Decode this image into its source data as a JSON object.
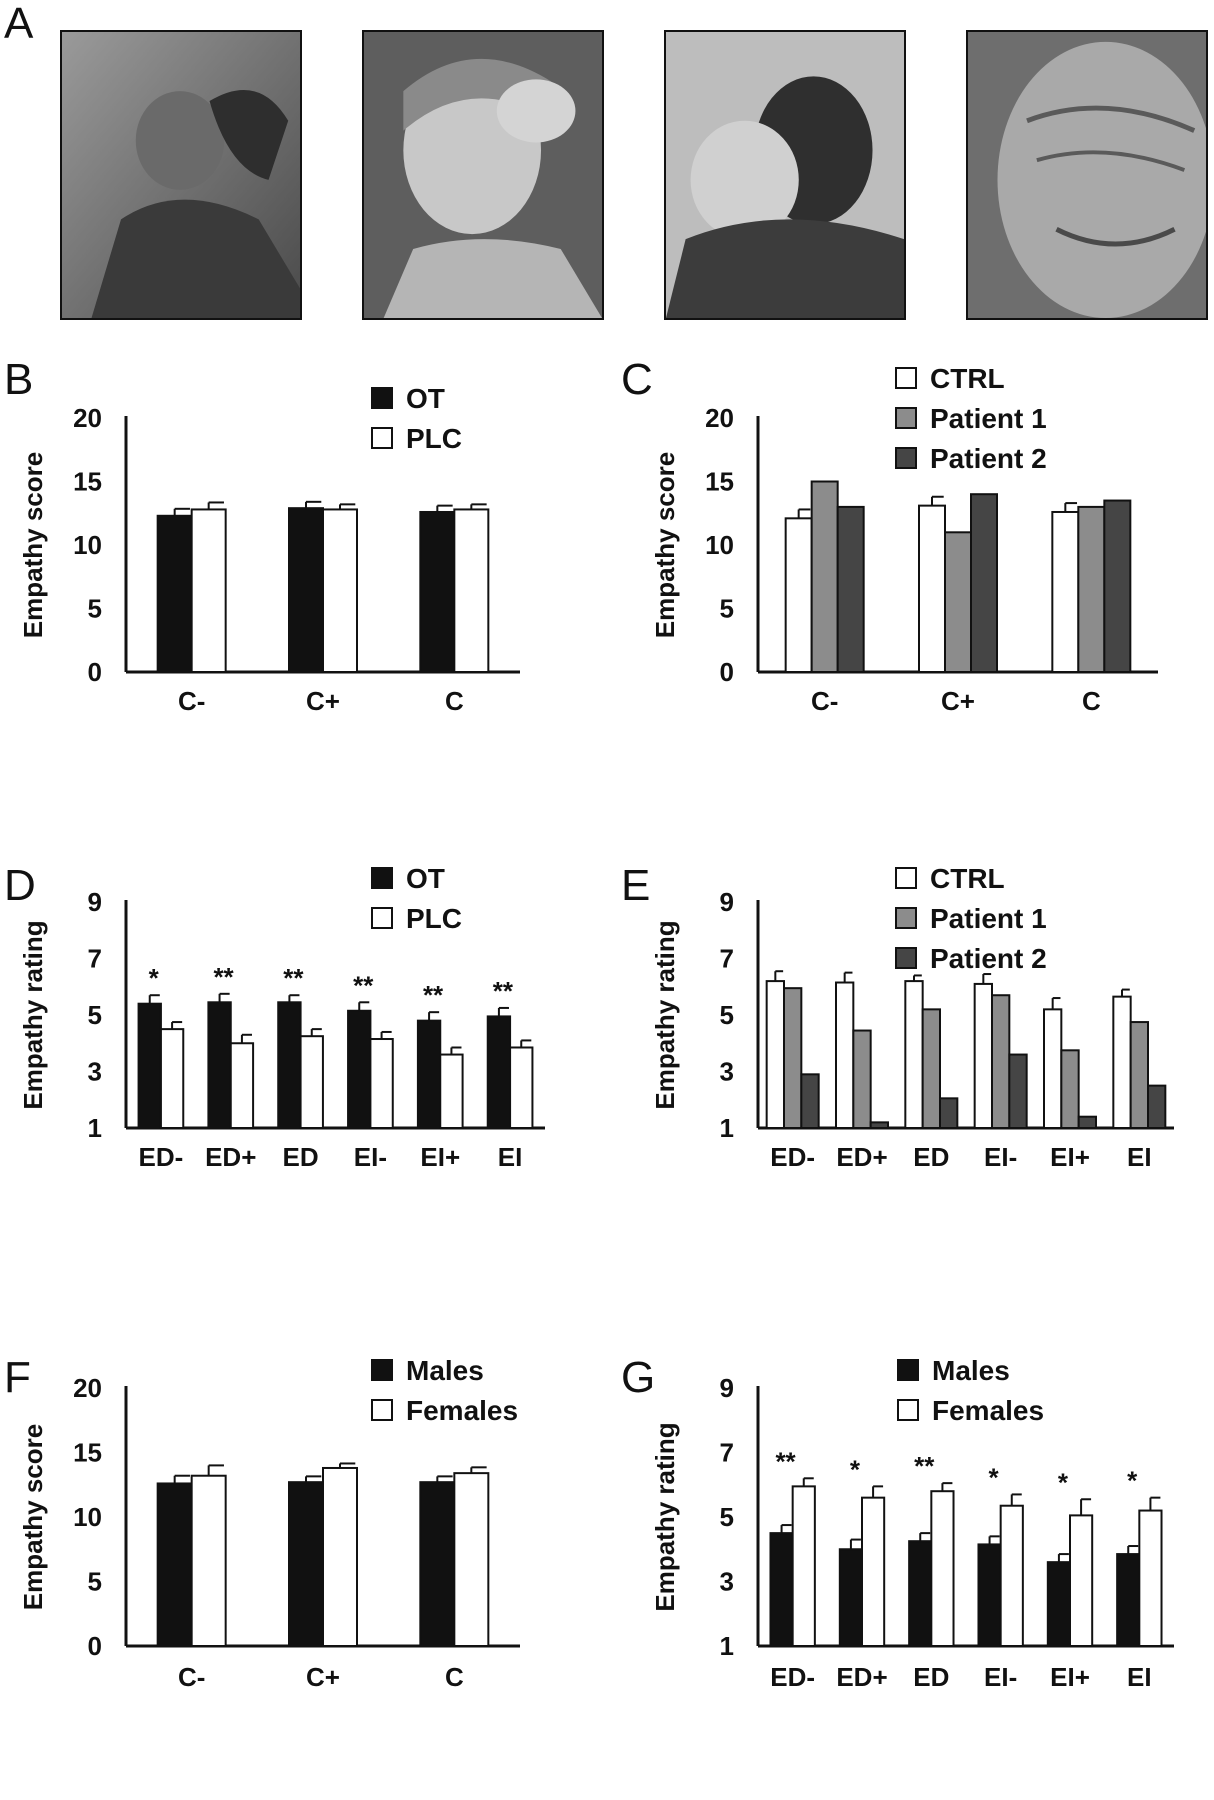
{
  "panels": {
    "A": "A",
    "B": "B",
    "C": "C",
    "D": "D",
    "E": "E",
    "F": "F",
    "G": "G"
  },
  "photos": [
    {
      "icon": "soldier-grief-photo"
    },
    {
      "icon": "crying-girl-photo"
    },
    {
      "icon": "boy-with-cat-photo"
    },
    {
      "icon": "elderly-man-photo"
    }
  ],
  "colors": {
    "black": "#111111",
    "white": "#ffffff",
    "patient1": "#8c8c8c",
    "patient2": "#454545"
  },
  "chart_data": [
    {
      "id": "B",
      "type": "bar",
      "ylabel": "Empathy score",
      "xlabel": "",
      "ylim": [
        0,
        20
      ],
      "yticks": [
        0,
        5,
        10,
        15,
        20
      ],
      "categories": [
        "C-",
        "C+",
        "C"
      ],
      "series": [
        {
          "name": "OT",
          "color": "black",
          "values": [
            12.3,
            12.9,
            12.6
          ],
          "errors": [
            0.55,
            0.5,
            0.5
          ]
        },
        {
          "name": "PLC",
          "color": "white",
          "values": [
            12.8,
            12.8,
            12.8
          ],
          "errors": [
            0.55,
            0.4,
            0.4
          ]
        }
      ],
      "annotations": [],
      "legend": "top-right"
    },
    {
      "id": "C",
      "type": "bar",
      "ylabel": "Empathy score",
      "xlabel": "",
      "ylim": [
        0,
        20
      ],
      "yticks": [
        0,
        5,
        10,
        15,
        20
      ],
      "categories": [
        "C-",
        "C+",
        "C"
      ],
      "series": [
        {
          "name": "CTRL",
          "color": "white",
          "values": [
            12.1,
            13.1,
            12.6
          ],
          "errors": [
            0.7,
            0.7,
            0.7
          ]
        },
        {
          "name": "Patient 1",
          "color": "patient1",
          "values": [
            15.0,
            11.0,
            13.0
          ],
          "errors": null
        },
        {
          "name": "Patient 2",
          "color": "patient2",
          "values": [
            13.0,
            14.0,
            13.5
          ],
          "errors": null
        }
      ],
      "annotations": [],
      "legend": "top-right"
    },
    {
      "id": "D",
      "type": "bar",
      "ylabel": "Empathy rating",
      "xlabel": "",
      "ylim": [
        1,
        9
      ],
      "yticks": [
        1,
        3,
        5,
        7,
        9
      ],
      "categories": [
        "ED-",
        "ED+",
        "ED",
        "EI-",
        "EI+",
        "EI"
      ],
      "series": [
        {
          "name": "OT",
          "color": "black",
          "values": [
            5.4,
            5.45,
            5.45,
            5.15,
            4.8,
            4.95
          ],
          "errors": [
            0.3,
            0.3,
            0.25,
            0.3,
            0.3,
            0.3
          ]
        },
        {
          "name": "PLC",
          "color": "white",
          "values": [
            4.5,
            4.0,
            4.25,
            4.15,
            3.6,
            3.85
          ],
          "errors": [
            0.25,
            0.3,
            0.25,
            0.25,
            0.25,
            0.25
          ]
        }
      ],
      "annotations": [
        "*",
        "**",
        "**",
        "**",
        "**",
        "**"
      ],
      "legend": "top-right"
    },
    {
      "id": "E",
      "type": "bar",
      "ylabel": "Empathy rating",
      "xlabel": "",
      "ylim": [
        1,
        9
      ],
      "yticks": [
        1,
        3,
        5,
        7,
        9
      ],
      "categories": [
        "ED-",
        "ED+",
        "ED",
        "EI-",
        "EI+",
        "EI"
      ],
      "series": [
        {
          "name": "CTRL",
          "color": "white",
          "values": [
            6.2,
            6.15,
            6.2,
            6.1,
            5.2,
            5.65
          ],
          "errors": [
            0.35,
            0.35,
            0.2,
            0.35,
            0.4,
            0.25
          ]
        },
        {
          "name": "Patient 1",
          "color": "patient1",
          "values": [
            5.95,
            4.45,
            5.2,
            5.7,
            3.75,
            4.75
          ],
          "errors": null
        },
        {
          "name": "Patient 2",
          "color": "patient2",
          "values": [
            2.9,
            1.2,
            2.05,
            3.6,
            1.4,
            2.5
          ],
          "errors": null
        }
      ],
      "annotations": [],
      "legend": "top-right"
    },
    {
      "id": "F",
      "type": "bar",
      "ylabel": "Empathy score",
      "xlabel": "",
      "ylim": [
        0,
        20
      ],
      "yticks": [
        0,
        5,
        10,
        15,
        20
      ],
      "categories": [
        "C-",
        "C+",
        "C"
      ],
      "series": [
        {
          "name": "Males",
          "color": "black",
          "values": [
            12.6,
            12.7,
            12.7
          ],
          "errors": [
            0.6,
            0.45,
            0.45
          ]
        },
        {
          "name": "Females",
          "color": "white",
          "values": [
            13.2,
            13.8,
            13.4
          ],
          "errors": [
            0.8,
            0.35,
            0.45
          ]
        }
      ],
      "annotations": [],
      "legend": "top-right"
    },
    {
      "id": "G",
      "type": "bar",
      "ylabel": "Empathy rating",
      "xlabel": "",
      "ylim": [
        1,
        9
      ],
      "yticks": [
        1,
        3,
        5,
        7,
        9
      ],
      "categories": [
        "ED-",
        "ED+",
        "ED",
        "EI-",
        "EI+",
        "EI"
      ],
      "series": [
        {
          "name": "Males",
          "color": "black",
          "values": [
            4.5,
            4.0,
            4.25,
            4.15,
            3.6,
            3.85
          ],
          "errors": [
            0.25,
            0.3,
            0.25,
            0.25,
            0.25,
            0.25
          ]
        },
        {
          "name": "Females",
          "color": "white",
          "values": [
            5.95,
            5.6,
            5.8,
            5.35,
            5.05,
            5.2
          ],
          "errors": [
            0.25,
            0.35,
            0.25,
            0.35,
            0.5,
            0.4
          ]
        }
      ],
      "annotations": [
        "**",
        "*",
        "**",
        "*",
        "*",
        "*"
      ],
      "legend": "top-right"
    }
  ]
}
